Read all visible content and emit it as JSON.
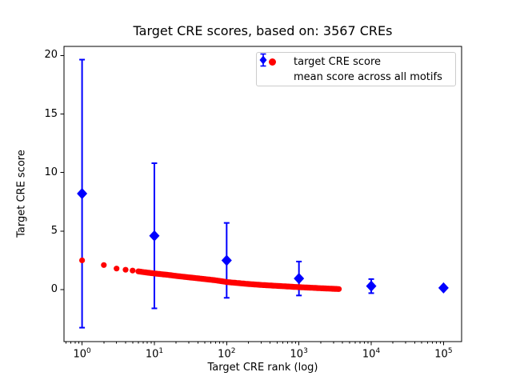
{
  "chart_data": {
    "type": "scatter",
    "title": "Target CRE scores, based on: 3567 CREs",
    "xlabel": "Target CRE rank (log)",
    "ylabel": "Target CRE score",
    "x_scale": "log10",
    "xlim_log10": [
      -0.25,
      5.25
    ],
    "ylim": [
      -4.44,
      20.78
    ],
    "grid": false,
    "x_major_ticks": [
      {
        "log10": 0,
        "base": "10",
        "exp": "0"
      },
      {
        "log10": 1,
        "base": "10",
        "exp": "1"
      },
      {
        "log10": 2,
        "base": "10",
        "exp": "2"
      },
      {
        "log10": 3,
        "base": "10",
        "exp": "3"
      },
      {
        "log10": 4,
        "base": "10",
        "exp": "4"
      },
      {
        "log10": 5,
        "base": "10",
        "exp": "5"
      }
    ],
    "y_ticks": [
      0,
      5,
      10,
      15,
      20
    ],
    "legend": {
      "position": "upper right",
      "entries": [
        {
          "label": "target CRE score",
          "marker": "circle",
          "color": "#ff0000"
        },
        {
          "label": "mean score across all motifs",
          "marker": "diamond-errorbar",
          "color": "#0000ff"
        }
      ]
    },
    "series": [
      {
        "name": "target CRE score",
        "marker": "circle",
        "color": "#ff0000",
        "n_points": 3567,
        "anchors": [
          [
            1,
            2.5
          ],
          [
            2,
            2.1
          ],
          [
            3,
            1.8
          ],
          [
            4,
            1.7
          ],
          [
            5,
            1.63
          ],
          [
            7,
            1.5
          ],
          [
            10,
            1.38
          ],
          [
            15,
            1.27
          ],
          [
            20,
            1.17
          ],
          [
            30,
            1.05
          ],
          [
            50,
            0.9
          ],
          [
            70,
            0.8
          ],
          [
            100,
            0.65
          ],
          [
            150,
            0.55
          ],
          [
            200,
            0.48
          ],
          [
            300,
            0.4
          ],
          [
            500,
            0.32
          ],
          [
            700,
            0.27
          ],
          [
            1000,
            0.21
          ],
          [
            1500,
            0.16
          ],
          [
            2000,
            0.12
          ],
          [
            3000,
            0.07
          ],
          [
            3567,
            0.05
          ]
        ]
      },
      {
        "name": "mean score across all motifs",
        "marker": "diamond",
        "color": "#0000ff",
        "points": [
          {
            "x": 1,
            "y": 8.2,
            "yerr": 11.45
          },
          {
            "x": 10,
            "y": 4.6,
            "yerr": 6.2
          },
          {
            "x": 100,
            "y": 2.5,
            "yerr": 3.2
          },
          {
            "x": 1000,
            "y": 0.95,
            "yerr": 1.45
          },
          {
            "x": 10000,
            "y": 0.3,
            "yerr": 0.6
          },
          {
            "x": 100000,
            "y": 0.15,
            "yerr": 0.1
          }
        ]
      }
    ]
  }
}
